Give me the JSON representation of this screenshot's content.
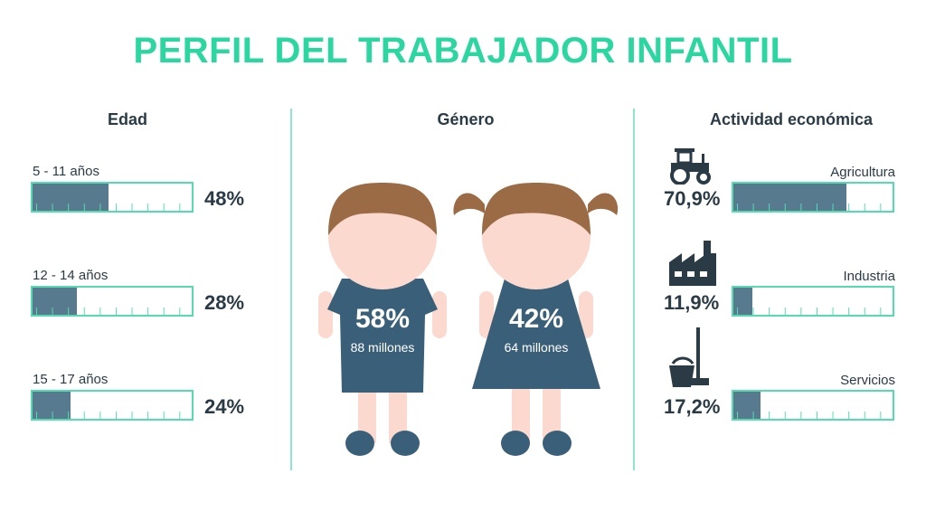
{
  "title": "PERFIL DEL TRABAJADOR INFANTIL",
  "colors": {
    "accent": "#2bd6a0",
    "bar_border": "#55dbb0",
    "bar_fill": "#587a8e",
    "dress": "#3a5f78",
    "hair": "#9b6b45",
    "skin": "#fbd9cf"
  },
  "edad": {
    "heading": "Edad",
    "items": [
      {
        "label": "5 - 11 años",
        "pct": "48%",
        "value": 48
      },
      {
        "label": "12 - 14 años",
        "pct": "28%",
        "value": 28
      },
      {
        "label": "15 - 17 años",
        "pct": "24%",
        "value": 24
      }
    ]
  },
  "genero": {
    "heading": "Género",
    "boy": {
      "pct": "58%",
      "sub": "88 millones"
    },
    "girl": {
      "pct": "42%",
      "sub": "64 millones"
    }
  },
  "actividad": {
    "heading": "Actividad económica",
    "items": [
      {
        "label": "Agricultura",
        "pct": "70,9%",
        "value": 70.9,
        "icon": "tractor-icon"
      },
      {
        "label": "Industria",
        "pct": "11,9%",
        "value": 11.9,
        "icon": "factory-icon"
      },
      {
        "label": "Servicios",
        "pct": "17,2%",
        "value": 17.2,
        "icon": "bucket-mop-icon"
      }
    ]
  }
}
